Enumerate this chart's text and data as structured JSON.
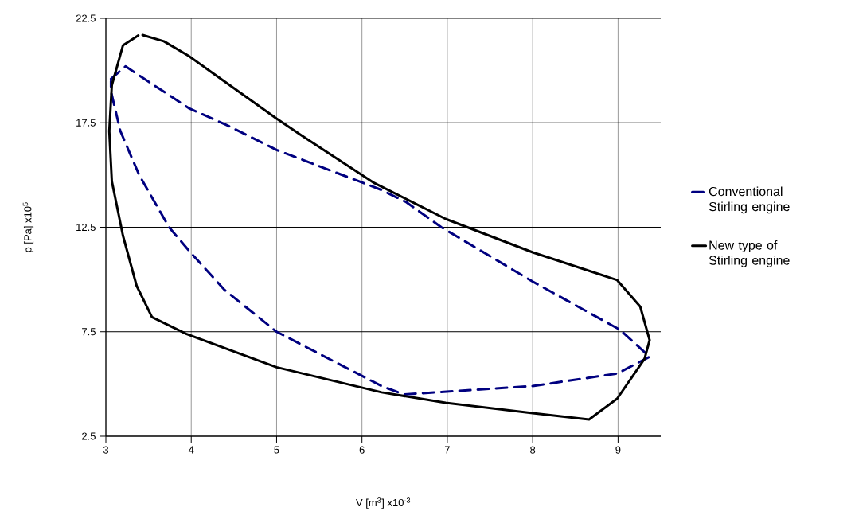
{
  "chart_data": {
    "type": "line",
    "xlabel": "V [m$^{3}$]  x10$^{-3}$",
    "ylabel": "p [Pa]  x10$^{5}$",
    "xlim": [
      3,
      9.5
    ],
    "xticks": [
      3,
      4,
      5,
      6,
      7,
      8,
      9
    ],
    "ylim": [
      2.5,
      22.5
    ],
    "yticks": [
      2.5,
      7.5,
      12.5,
      17.5,
      22.5
    ],
    "grid": true,
    "legend": "right",
    "marker": "none",
    "series": [
      {
        "name": "Conventional Stirling engine",
        "color": "#000080",
        "line_style": "dashed",
        "x": [
          3.06,
          3.23,
          3.97,
          4.41,
          5.0,
          6.22,
          6.52,
          6.93,
          8.0,
          9.02,
          9.37,
          8.99,
          8.0,
          6.49,
          6.23,
          5.0,
          4.39,
          3.99,
          3.74,
          3.39,
          3.17,
          3.06,
          3.06
        ],
        "values": [
          19.6,
          20.2,
          18.2,
          17.4,
          16.2,
          14.3,
          13.7,
          12.5,
          9.9,
          7.6,
          6.3,
          5.5,
          4.9,
          4.5,
          4.9,
          7.5,
          9.5,
          11.3,
          12.5,
          15.0,
          17.1,
          19.0,
          19.5
        ]
      },
      {
        "name": "New type of Stirling engine",
        "color": "#000000",
        "line_style": "solid",
        "x": [
          3.43,
          3.68,
          3.97,
          5.0,
          5.29,
          6.13,
          6.98,
          8.0,
          8.99,
          9.26,
          9.37,
          9.31,
          8.99,
          8.66,
          8.0,
          6.98,
          6.23,
          5.0,
          3.94,
          3.54,
          3.36,
          3.2,
          3.07,
          3.04,
          3.07,
          3.2,
          3.38
        ],
        "values": [
          21.7,
          21.4,
          20.7,
          17.7,
          16.9,
          14.65,
          12.9,
          11.3,
          9.97,
          8.7,
          7.1,
          6.2,
          4.3,
          3.3,
          3.6,
          4.1,
          4.6,
          5.8,
          7.4,
          8.2,
          9.7,
          12.1,
          14.7,
          17.1,
          19.3,
          21.2,
          21.68
        ]
      }
    ]
  }
}
